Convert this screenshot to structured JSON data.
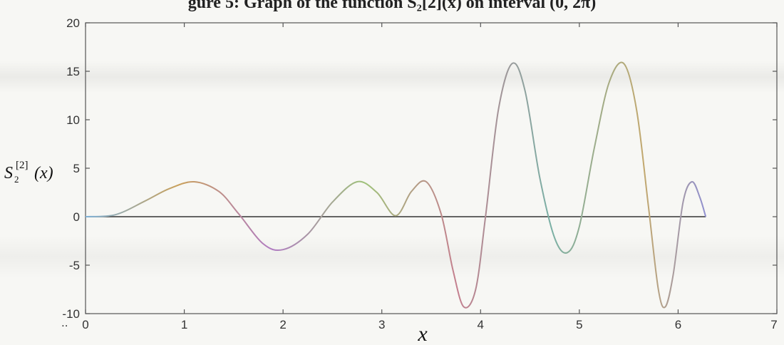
{
  "figure_caption_cut": "gure 5: Graph of the function S₂[2](x) on interval (0, 2π)",
  "chart_data": {
    "type": "line",
    "xlabel": "x",
    "ylabel": "S",
    "ylabel_sup": "[2]",
    "ylabel_sub": "2",
    "ylabel_arg": "(x)",
    "xlim": [
      0,
      7
    ],
    "ylim": [
      -10,
      20
    ],
    "xticks": [
      0,
      1,
      2,
      3,
      4,
      5,
      6,
      7
    ],
    "yticks": [
      -10,
      -5,
      0,
      5,
      10,
      15,
      20
    ],
    "xtick_labels": [
      "0",
      "1",
      "2",
      "3",
      "4",
      "5",
      "6",
      "7"
    ],
    "ytick_labels": [
      "-10",
      "-5",
      "0",
      "5",
      "10",
      "15",
      "20"
    ],
    "x_origin_extra_label": "..",
    "grid": false,
    "baseline_y": 0,
    "series": [
      {
        "x": [
          0,
          0.3,
          0.6,
          0.85,
          1.1,
          1.35,
          1.55,
          1.8,
          2.0,
          2.25,
          2.5,
          2.75,
          2.95,
          3.14,
          3.3,
          3.45,
          3.6,
          3.72,
          3.83,
          3.95,
          4.05,
          4.18,
          4.32,
          4.45,
          4.6,
          4.75,
          4.88,
          5.0,
          5.15,
          5.3,
          5.45,
          5.58,
          5.7,
          5.8,
          5.87,
          5.95,
          6.05,
          6.14,
          6.22,
          6.28
        ],
        "y": [
          0,
          0.2,
          1.6,
          2.9,
          3.6,
          2.6,
          0.3,
          -2.8,
          -3.4,
          -1.8,
          1.5,
          3.6,
          2.5,
          0.1,
          2.6,
          3.6,
          0.3,
          -5.5,
          -9.3,
          -7.5,
          0,
          11.0,
          15.8,
          13.0,
          4.0,
          -2.2,
          -3.7,
          -1.0,
          7.0,
          13.8,
          15.8,
          11.0,
          1.0,
          -7.5,
          -9.3,
          -6.0,
          1.5,
          3.6,
          2.0,
          0.0
        ]
      }
    ]
  }
}
